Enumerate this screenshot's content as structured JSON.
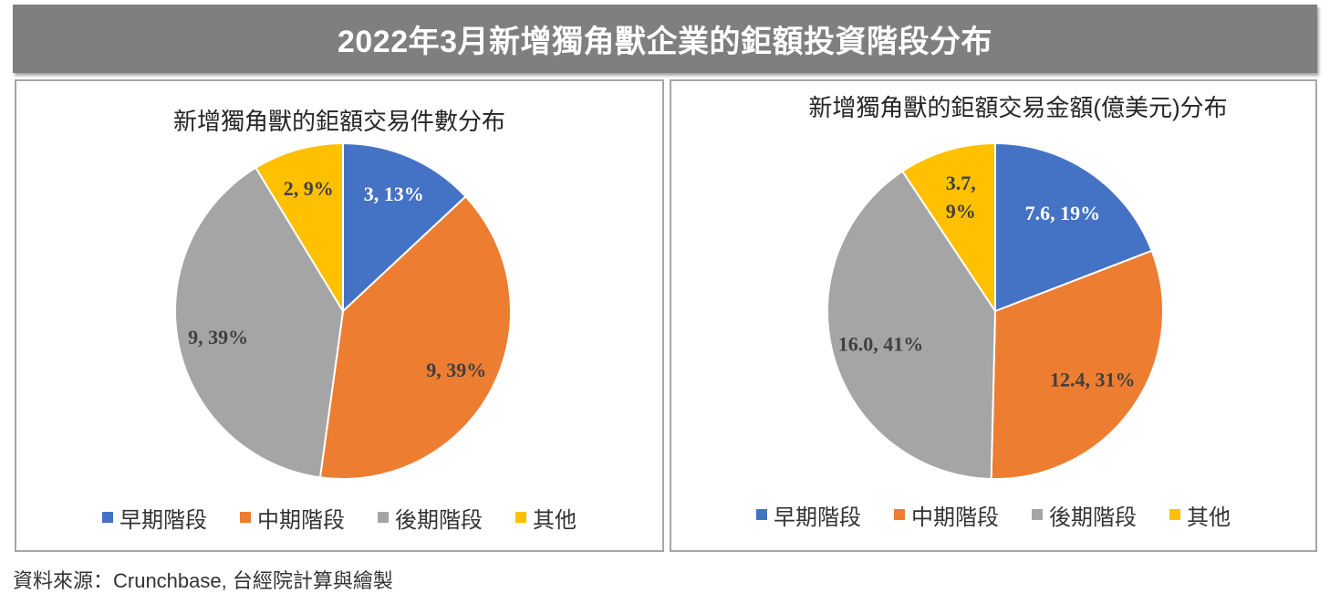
{
  "title": "2022年3月新增獨角獸企業的鉅額投資階段分布",
  "source": "資料來源：Crunchbase, 台經院計算與繪製",
  "colors": {
    "title_bar": "#7f7f7f",
    "title_text": "#ffffff",
    "panel_border": "#a6a6a6"
  },
  "chart_data": [
    {
      "type": "pie",
      "title": "新增獨角獸的鉅額交易件數分布",
      "categories": [
        "早期階段",
        "中期階段",
        "後期階段",
        "其他"
      ],
      "values": [
        3,
        9,
        9,
        2
      ],
      "percentages": [
        13,
        39,
        39,
        9
      ],
      "data_labels": [
        [
          "3, 13%"
        ],
        [
          "9, 39%"
        ],
        [
          "9, 39%"
        ],
        [
          "2, 9%"
        ]
      ],
      "colors": [
        "#4472C4",
        "#ED7D31",
        "#A5A5A5",
        "#FFC000"
      ],
      "label_colors": [
        "#ffffff",
        "#404040",
        "#404040",
        "#404040"
      ],
      "legend": "bottom"
    },
    {
      "type": "pie",
      "title": "新增獨角獸的鉅額交易金額(億美元)分布",
      "categories": [
        "早期階段",
        "中期階段",
        "後期階段",
        "其他"
      ],
      "values": [
        7.6,
        12.4,
        16.0,
        3.7
      ],
      "percentages": [
        19,
        31,
        41,
        9
      ],
      "data_labels": [
        [
          "7.6, 19%"
        ],
        [
          "12.4, 31%"
        ],
        [
          "16.0, 41%"
        ],
        [
          "3.7,",
          "9%"
        ]
      ],
      "colors": [
        "#4472C4",
        "#ED7D31",
        "#A5A5A5",
        "#FFC000"
      ],
      "label_colors": [
        "#ffffff",
        "#404040",
        "#404040",
        "#404040"
      ],
      "legend": "bottom"
    }
  ]
}
